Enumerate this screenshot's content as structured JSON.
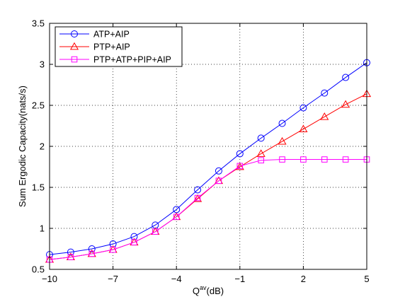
{
  "chart_data": {
    "type": "line",
    "xlabel_base": "Q",
    "xlabel_sup": "av",
    "xlabel_unit": "(dB)",
    "ylabel": "Sum Ergodic Capacity(nats/s)",
    "xlim": [
      -10,
      5
    ],
    "ylim": [
      0.5,
      3.5
    ],
    "xticks": [
      -10,
      -7,
      -4,
      -1,
      2,
      5
    ],
    "xtick_labels": [
      "−10",
      "−7",
      "−4",
      "−1",
      "2",
      "5"
    ],
    "yticks": [
      0.5,
      1,
      1.5,
      2,
      2.5,
      3,
      3.5
    ],
    "ytick_labels": [
      "0.5",
      "1",
      "1.5",
      "2",
      "2.5",
      "3",
      "3.5"
    ],
    "grid": true,
    "legend_position": "top-left",
    "x": [
      -10,
      -9,
      -8,
      -7,
      -6,
      -5,
      -4,
      -3,
      -2,
      -1,
      0,
      1,
      2,
      3,
      4,
      5
    ],
    "series": [
      {
        "name": "ATP+AIP",
        "color": "#0000ff",
        "marker": "circle",
        "values": [
          0.68,
          0.71,
          0.75,
          0.81,
          0.9,
          1.04,
          1.23,
          1.47,
          1.7,
          1.91,
          2.1,
          2.28,
          2.47,
          2.65,
          2.84,
          3.02
        ]
      },
      {
        "name": "PTP+AIP",
        "color": "#ff0000",
        "marker": "triangle",
        "values": [
          0.62,
          0.65,
          0.69,
          0.74,
          0.83,
          0.96,
          1.14,
          1.36,
          1.58,
          1.75,
          1.91,
          2.06,
          2.21,
          2.36,
          2.51,
          2.64
        ]
      },
      {
        "name": "PTP+ATP+PIP+AIP",
        "color": "#ff00ff",
        "marker": "square",
        "values": [
          0.62,
          0.65,
          0.69,
          0.74,
          0.83,
          0.96,
          1.14,
          1.37,
          1.58,
          1.76,
          1.83,
          1.84,
          1.84,
          1.84,
          1.84,
          1.84
        ]
      }
    ]
  }
}
